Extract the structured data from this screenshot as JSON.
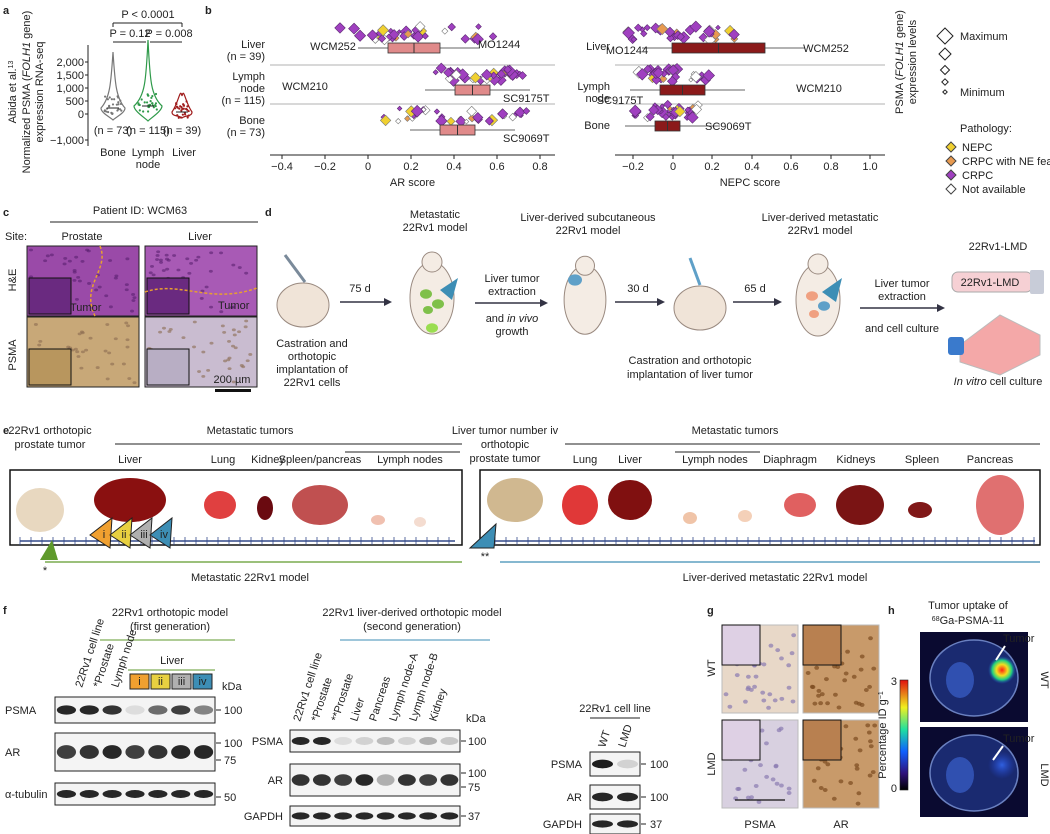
{
  "panel_labels": [
    "a",
    "b",
    "c",
    "d",
    "e",
    "f",
    "g",
    "h"
  ],
  "a": {
    "source": "Abida et al.",
    "source_ref": "13",
    "y_label_1_pre": "Normalized PSMA (",
    "y_label_gene": "FOLH1",
    "y_label_1_post": " gene)",
    "y_label_2": "expression RNA-seq",
    "yticks": [
      "2,000",
      "1,500",
      "1,000",
      "500",
      "0",
      "−1,000"
    ],
    "categories": [
      "Bone",
      [
        "Lymph",
        "node"
      ],
      "Liver"
    ],
    "n_labels": [
      "(n = 73)",
      "(n = 115)",
      "(n = 39)"
    ],
    "p_values": [
      "P < 0.0001",
      "P = 0.12",
      "P = 0.008"
    ]
  },
  "b": {
    "rows": [
      [
        "Liver",
        "(n = 39)"
      ],
      [
        "Lymph",
        "node",
        "(n = 115)"
      ],
      [
        "Bone",
        "(n = 73)"
      ]
    ],
    "rows_right": [
      "Liver",
      [
        "Lymph",
        "node"
      ],
      "Bone"
    ],
    "ar": {
      "xlabel": "AR score",
      "xticks": [
        "−0.4",
        "−0.2",
        "0",
        "0.2",
        "0.4",
        "0.6",
        "0.8"
      ],
      "samples": [
        "WCM252",
        "MO1244",
        "WCM210",
        "SC9175T",
        "SC9069T"
      ]
    },
    "nepc": {
      "xlabel": "NEPC score",
      "xticks": [
        "−0.2",
        "0",
        "0.2",
        "0.4",
        "0.6",
        "0.8",
        "1.0"
      ],
      "samples": [
        "MO1244",
        "WCM252",
        "WCM210",
        "SC9175T",
        "SC9069T"
      ]
    },
    "legend": {
      "size_title_pre": "PSMA (",
      "size_title_gene": "FOLH1",
      "size_title_post": " gene)",
      "size_title_2": "expression levels",
      "maximum": "Maximum",
      "minimum": "Minimum",
      "pathology_title": "Pathology:",
      "pathology": [
        "NEPC",
        "CRPC with NE features",
        "CRPC",
        "Not available"
      ]
    }
  },
  "c": {
    "patient": "Patient ID: WCM63",
    "site": "Site:",
    "cols": [
      "Prostate",
      "Liver"
    ],
    "rows": [
      "H&E",
      "PSMA"
    ],
    "tumor": [
      "Tumor",
      "Tumor"
    ],
    "scale": "200 µm"
  },
  "d": {
    "step1": [
      "Castration and",
      "orthotopic",
      "implantation of",
      "22Rv1 cells"
    ],
    "days": [
      "75 d",
      "30 d",
      "65 d"
    ],
    "model1": [
      "Metastatic",
      "22Rv1 model"
    ],
    "step2": [
      "Liver tumor",
      "extraction"
    ],
    "step2b_pre": "and ",
    "step2b_em": "in vivo",
    "step2b_2": "growth",
    "model2": [
      "Liver-derived subcutaneous",
      "22Rv1 model"
    ],
    "step3": [
      "Castration and orthotopic",
      "implantation of liver tumor"
    ],
    "model3": [
      "Liver-derived metastatic",
      "22Rv1 model"
    ],
    "step4": [
      "Liver tumor",
      "extraction"
    ],
    "step4b": "and cell culture",
    "product": "22Rv1-LMD",
    "tube_label": "22Rv1-LMD",
    "culture_em": "In vitro",
    "culture_post": " cell culture"
  },
  "e": {
    "left_title": [
      "22Rv1 orthotopic",
      "prostate tumor"
    ],
    "left_group": "Metastatic tumors",
    "left_organs": [
      "Liver",
      "Lung",
      "Kidney",
      "Spleen/pancreas",
      "Lymph nodes"
    ],
    "right_title": [
      "Liver tumor number iv",
      "orthotopic",
      "prostate tumor"
    ],
    "right_group": "Metastatic tumors",
    "right_organs": [
      "Lung",
      "Liver",
      "Lymph nodes",
      "Diaphragm",
      "Kidneys",
      "Spleen",
      "Pancreas"
    ],
    "markers": [
      "i",
      "ii",
      "iii",
      "iv"
    ],
    "star": "*",
    "double_star": "**",
    "left_model": "Metastatic 22Rv1 model",
    "right_model": "Liver-derived metastatic 22Rv1 model"
  },
  "f": {
    "left": {
      "title": [
        "22Rv1 orthotopic model",
        "(first generation)"
      ],
      "lanes": [
        "22Rv1 cell line",
        "*Prostate",
        "Lymph node"
      ],
      "liver": "Liver",
      "liver_lanes": [
        "i",
        "ii",
        "iii",
        "iv"
      ],
      "kda": "kDa",
      "rows": [
        "PSMA",
        "AR",
        "α-tubulin"
      ],
      "kda_marks": [
        "100",
        "100",
        "75",
        "50"
      ]
    },
    "middle": {
      "title": [
        "22Rv1 liver-derived orthotopic model",
        "(second generation)"
      ],
      "lanes": [
        "22Rv1 cell line",
        "*Prostate",
        "**Prostate",
        "Liver",
        "Pancreas",
        "Lymph node-A",
        "Lymph node-B",
        "Kidney"
      ],
      "kda": "kDa",
      "rows": [
        "PSMA",
        "AR",
        "GAPDH"
      ],
      "kda_marks": [
        "100",
        "100",
        "75",
        "37"
      ]
    },
    "right": {
      "title": "22Rv1 cell line",
      "lanes": [
        "WT",
        "LMD"
      ],
      "rows": [
        "PSMA",
        "AR",
        "GAPDH"
      ],
      "kda_marks": [
        "100",
        "100",
        "37"
      ]
    }
  },
  "g": {
    "rows": [
      "WT",
      "LMD"
    ],
    "cols": [
      "PSMA",
      "AR"
    ]
  },
  "h": {
    "title": "Tumor uptake of",
    "isotope": "68",
    "tracer": "Ga-PSMA-11",
    "tumor": [
      "Tumor",
      "Tumor"
    ],
    "rows": [
      "WT",
      "LMD"
    ],
    "colorbar_ticks": [
      "3",
      "0"
    ],
    "colorbar_label": "Percentage ID g",
    "colorbar_unit": "−1"
  }
}
